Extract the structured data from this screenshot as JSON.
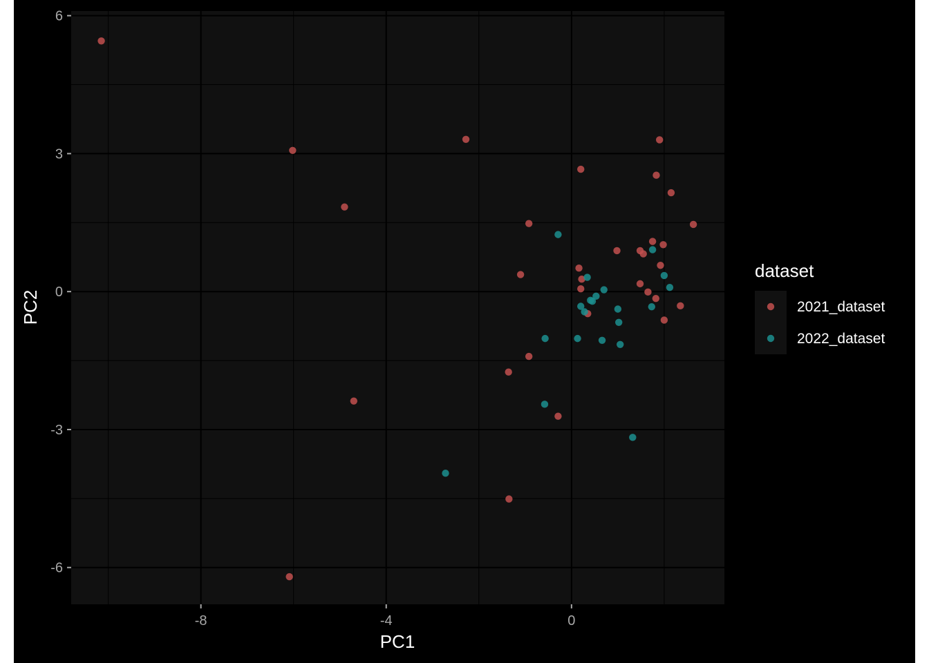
{
  "chart_data": {
    "type": "scatter",
    "title": "",
    "xlabel": "PC1",
    "ylabel": "PC2",
    "xlim": [
      -10.8,
      3.3
    ],
    "ylim": [
      -6.8,
      6.1
    ],
    "x_ticks": [
      -8,
      -4,
      0
    ],
    "x_tick_labels": [
      "-8",
      "-4",
      "0"
    ],
    "y_ticks": [
      6,
      3,
      0,
      -3,
      -6
    ],
    "y_tick_labels": [
      "6",
      "3",
      "0",
      "-3",
      "-6"
    ],
    "grid": true,
    "legend": {
      "title": "dataset",
      "placement": "right"
    },
    "colors": {
      "background": "#000000",
      "panel": "#111111",
      "grid": "#000000"
    },
    "series": [
      {
        "name": "2021_dataset",
        "color": "#c2504f",
        "points": [
          [
            -10.15,
            5.45
          ],
          [
            -6.02,
            3.07
          ],
          [
            -4.9,
            1.84
          ],
          [
            -2.28,
            3.31
          ],
          [
            0.2,
            2.66
          ],
          [
            1.9,
            3.3
          ],
          [
            1.83,
            2.53
          ],
          [
            2.15,
            2.15
          ],
          [
            2.63,
            1.46
          ],
          [
            -0.92,
            1.48
          ],
          [
            0.98,
            0.89
          ],
          [
            1.48,
            0.89
          ],
          [
            1.55,
            0.82
          ],
          [
            1.75,
            1.09
          ],
          [
            1.98,
            1.02
          ],
          [
            1.92,
            0.57
          ],
          [
            0.16,
            0.51
          ],
          [
            0.22,
            0.27
          ],
          [
            -1.1,
            0.37
          ],
          [
            0.2,
            0.06
          ],
          [
            1.48,
            0.17
          ],
          [
            1.65,
            -0.01
          ],
          [
            1.82,
            -0.15
          ],
          [
            2.35,
            -0.31
          ],
          [
            0.35,
            -0.48
          ],
          [
            2.0,
            -0.62
          ],
          [
            -0.92,
            -1.41
          ],
          [
            -1.36,
            -1.75
          ],
          [
            -4.7,
            -2.38
          ],
          [
            -0.29,
            -2.71
          ],
          [
            -1.35,
            -4.51
          ],
          [
            -6.09,
            -6.2
          ]
        ]
      },
      {
        "name": "2022_dataset",
        "color": "#1c8f8f",
        "points": [
          [
            -0.29,
            1.24
          ],
          [
            1.75,
            0.91
          ],
          [
            2.0,
            0.35
          ],
          [
            0.34,
            0.31
          ],
          [
            2.12,
            0.09
          ],
          [
            0.7,
            0.04
          ],
          [
            0.53,
            -0.1
          ],
          [
            0.41,
            -0.19
          ],
          [
            0.45,
            -0.21
          ],
          [
            0.2,
            -0.32
          ],
          [
            1.73,
            -0.33
          ],
          [
            1.0,
            -0.38
          ],
          [
            0.28,
            -0.44
          ],
          [
            1.02,
            -0.67
          ],
          [
            -0.57,
            -1.02
          ],
          [
            0.13,
            -1.02
          ],
          [
            0.66,
            -1.06
          ],
          [
            1.05,
            -1.15
          ],
          [
            -0.58,
            -2.45
          ],
          [
            1.32,
            -3.17
          ],
          [
            -2.72,
            -3.95
          ]
        ]
      }
    ]
  }
}
